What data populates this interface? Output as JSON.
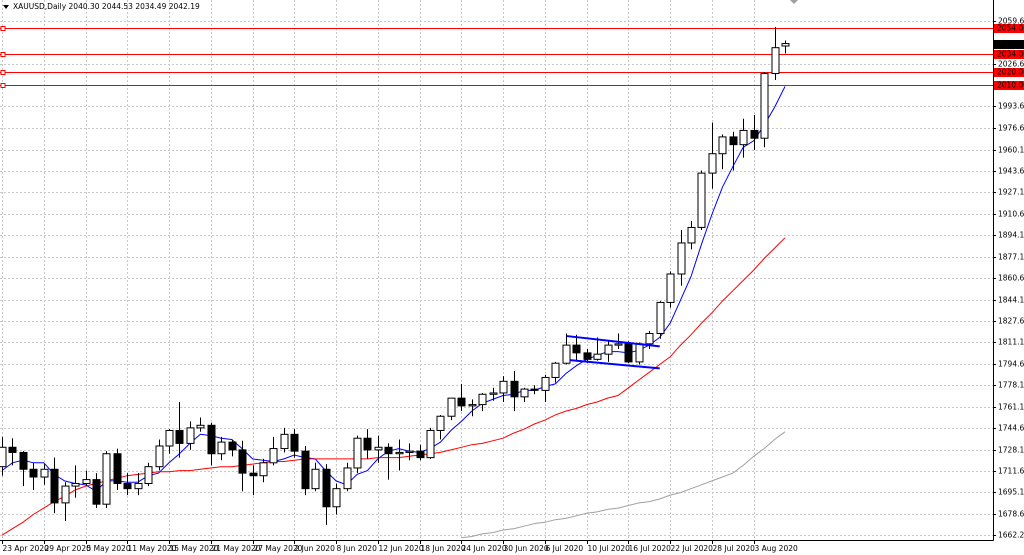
{
  "chart_data": {
    "type": "candlestick",
    "title": "XAUUSD,Daily  2040.30 2044.53 2034.49 2042.19",
    "categories": [
      "23 Apr 2020",
      null,
      null,
      null,
      "29 Apr 2020",
      null,
      null,
      null,
      "5 May 2020",
      null,
      null,
      null,
      "11 May 2020",
      null,
      null,
      null,
      "15 May 2020",
      null,
      null,
      null,
      "21 May 2020",
      null,
      null,
      null,
      "27 May 2020",
      null,
      null,
      null,
      "2 Jun 2020",
      null,
      null,
      null,
      "8 Jun 2020",
      null,
      null,
      null,
      "12 Jun 2020",
      null,
      null,
      null,
      "18 Jun 2020",
      null,
      null,
      null,
      "24 Jun 2020",
      null,
      null,
      null,
      "30 Jun 2020",
      null,
      null,
      null,
      "6 Jul 2020",
      null,
      null,
      null,
      "10 Jul 2020",
      null,
      null,
      null,
      "16 Jul 2020",
      null,
      null,
      null,
      "22 Jul 2020",
      null,
      null,
      null,
      "28 Jul 2020",
      null,
      null,
      null,
      "3 Aug 2020",
      null,
      null,
      null
    ],
    "open": [
      1715,
      1730,
      1726,
      1713,
      1707,
      1713,
      1687,
      1700,
      1702,
      1705,
      1686,
      1725,
      1702,
      1698,
      1702,
      1715,
      1731,
      1743,
      1733,
      1745,
      1747,
      1725,
      1734,
      1728,
      1710,
      1708,
      1718,
      1729,
      1740,
      1727,
      1698,
      1713,
      1684,
      1698,
      1714,
      1737,
      1728,
      1730,
      1725,
      1726,
      1727,
      1722,
      1743,
      1754,
      1768,
      1762,
      1763,
      1771,
      1772,
      1781,
      1769,
      1775,
      1774,
      1784,
      1795,
      1809,
      1803,
      1798,
      1802,
      1809,
      1810,
      1796,
      1810,
      1818,
      1842,
      1864,
      1888,
      1900,
      1942,
      1957,
      1970,
      1964,
      1975,
      1969,
      2019,
      2040.3
    ],
    "high": [
      1738,
      1737,
      1727,
      1718,
      1717,
      1722,
      1703,
      1716,
      1712,
      1710,
      1727,
      1729,
      1710,
      1710,
      1718,
      1736,
      1744,
      1765,
      1750,
      1753,
      1749,
      1738,
      1736,
      1735,
      1716,
      1721,
      1738,
      1745,
      1744,
      1731,
      1718,
      1717,
      1702,
      1718,
      1739,
      1744,
      1739,
      1733,
      1736,
      1733,
      1732,
      1745,
      1755,
      1768,
      1779,
      1767,
      1772,
      1776,
      1785,
      1789,
      1776,
      1778,
      1786,
      1796,
      1818,
      1817,
      1806,
      1815,
      1812,
      1818,
      1812,
      1811,
      1820,
      1843,
      1866,
      1898,
      1905,
      1944,
      1981,
      1972,
      1974,
      1984,
      1987,
      2020,
      2055,
      2044.53
    ],
    "low": [
      1708,
      1716,
      1700,
      1697,
      1701,
      1679,
      1673,
      1691,
      1700,
      1683,
      1683,
      1697,
      1693,
      1693,
      1700,
      1712,
      1725,
      1722,
      1728,
      1742,
      1716,
      1720,
      1723,
      1696,
      1693,
      1703,
      1716,
      1726,
      1722,
      1693,
      1696,
      1670,
      1678,
      1696,
      1710,
      1721,
      1718,
      1705,
      1712,
      1720,
      1720,
      1721,
      1736,
      1751,
      1758,
      1754,
      1758,
      1766,
      1765,
      1758,
      1765,
      1771,
      1765,
      1780,
      1794,
      1797,
      1795,
      1797,
      1796,
      1806,
      1795,
      1794,
      1806,
      1814,
      1838,
      1855,
      1883,
      1898,
      1930,
      1945,
      1944,
      1954,
      1960,
      1962,
      2014,
      2034.49
    ],
    "close": [
      1730,
      1726,
      1713,
      1707,
      1713,
      1687,
      1700,
      1702,
      1705,
      1686,
      1725,
      1702,
      1698,
      1702,
      1715,
      1731,
      1743,
      1733,
      1745,
      1747,
      1725,
      1734,
      1728,
      1710,
      1708,
      1718,
      1729,
      1740,
      1727,
      1698,
      1713,
      1684,
      1698,
      1714,
      1737,
      1728,
      1730,
      1725,
      1726,
      1727,
      1722,
      1743,
      1754,
      1768,
      1762,
      1763,
      1771,
      1772,
      1781,
      1769,
      1775,
      1774,
      1784,
      1795,
      1809,
      1803,
      1798,
      1802,
      1809,
      1810,
      1796,
      1810,
      1818,
      1842,
      1864,
      1888,
      1900,
      1942,
      1957,
      1970,
      1964,
      1975,
      1969,
      2019,
      2039,
      2042.19
    ],
    "overlays": [
      {
        "color": "#0000ff",
        "values": [
          1712,
          1718,
          1720,
          1718,
          1718,
          1709,
          1704,
          1702,
          1701,
          1696,
          1704,
          1704,
          1703,
          1703,
          1708,
          1710,
          1718,
          1725,
          1733,
          1740,
          1739,
          1737,
          1736,
          1729,
          1721,
          1720,
          1719,
          1721,
          1724,
          1722,
          1721,
          1712,
          1704,
          1701,
          1709,
          1712,
          1721,
          1727,
          1729,
          1727,
          1726,
          1729,
          1734,
          1743,
          1750,
          1758,
          1764,
          1767,
          1770,
          1771,
          1774,
          1774,
          1777,
          1779,
          1787,
          1793,
          1798,
          1801,
          1804,
          1804,
          1803,
          1805,
          1809,
          1815,
          1826,
          1844,
          1862,
          1887,
          1910,
          1931,
          1947,
          1962,
          1967,
          1979,
          1993,
          2009
        ]
      },
      {
        "color": "#ff0000",
        "values": [
          1662,
          1667,
          1672,
          1678,
          1683,
          1688,
          1692,
          1697,
          1700,
          1702,
          1704,
          1706,
          1708,
          1709,
          1710,
          1711,
          1711,
          1712,
          1712,
          1713,
          1714,
          1715,
          1715,
          1716,
          1717,
          1718,
          1719,
          1719,
          1720,
          1721,
          1721,
          1721,
          1721,
          1721,
          1721,
          1721,
          1722,
          1722,
          1722,
          1723,
          1724,
          1725,
          1726,
          1728,
          1730,
          1732,
          1733,
          1735,
          1737,
          1741,
          1744,
          1748,
          1751,
          1755,
          1758,
          1760,
          1763,
          1765,
          1768,
          1770,
          1776,
          1782,
          1788,
          1794,
          1800,
          1809,
          1817,
          1826,
          1834,
          1843,
          1851,
          1859,
          1867,
          1876,
          1884,
          1892
        ]
      },
      {
        "color": "#a0a0a0",
        "values": [
          null,
          null,
          null,
          null,
          null,
          null,
          null,
          null,
          null,
          null,
          null,
          null,
          null,
          null,
          null,
          null,
          null,
          null,
          null,
          null,
          null,
          null,
          null,
          null,
          null,
          null,
          null,
          null,
          null,
          null,
          null,
          null,
          null,
          null,
          null,
          null,
          null,
          null,
          null,
          null,
          null,
          null,
          null,
          null,
          1660,
          1661,
          1663,
          1664,
          1666,
          1667,
          1669,
          1671,
          1672,
          1674,
          1675,
          1677,
          1679,
          1680,
          1682,
          1683,
          1685,
          1687,
          1688,
          1690,
          1693,
          1695,
          1698,
          1701,
          1704,
          1707,
          1710,
          1716,
          1723,
          1729,
          1736,
          1742
        ]
      }
    ],
    "trendlines": [
      {
        "color": "#0000ff",
        "points": [
          [
            54.1,
            1816
          ],
          [
            63,
            1808
          ]
        ]
      },
      {
        "color": "#0000ff",
        "points": [
          [
            54.4,
            1797.4
          ],
          [
            63,
            1791
          ]
        ]
      }
    ],
    "levels": {
      "color": "#ff0000",
      "values": [
        {
          "value": 2054,
          "label": "2054.00"
        },
        {
          "value": 2034,
          "label": "2034.00"
        },
        {
          "value": 2020,
          "label": "2020.00"
        },
        {
          "value": 2010,
          "label": "2010.00"
        }
      ]
    },
    "current_price": 2042.19,
    "bull_color": "#ffffff",
    "bear_color": "#000000",
    "ylim": [
      1658.3,
      2072
    ],
    "yticks": [
      {
        "value": 1662.2,
        "label": "1662.20"
      },
      {
        "value": 1678.6,
        "label": "1678.60"
      },
      1695.15,
      {
        "value": 1711.6,
        "label": "1711.60"
      },
      1728.15,
      {
        "value": 1744.6,
        "label": "1744.60"
      },
      {
        "value": 1761.1,
        "label": "1761.10"
      },
      {
        "value": 1778.1,
        "label": "1778.10"
      },
      {
        "value": 1794.6,
        "label": "1794.60"
      },
      {
        "value": 1811.1,
        "label": "1811.10"
      },
      {
        "value": 1827.6,
        "label": "1827.60"
      },
      {
        "value": 1844.1,
        "label": "1844.10"
      },
      {
        "value": 1860.6,
        "label": "1860.60"
      },
      {
        "value": 1877.1,
        "label": "1877.10"
      },
      {
        "value": 1894.1,
        "label": "1894.10"
      },
      {
        "value": 1910.6,
        "label": "1910.60"
      },
      {
        "value": 1927.1,
        "label": "1927.10"
      },
      {
        "value": 1943.6,
        "label": "1943.60"
      },
      {
        "value": 1960.1,
        "label": "1960.10"
      },
      {
        "value": 1976.6,
        "label": "1976.60"
      },
      {
        "value": 1993.6,
        "label": "1993.60"
      },
      {
        "value": 2026.6,
        "label": "2026.60"
      },
      {
        "value": 2059.6,
        "label": "2059.60"
      }
    ],
    "grid": true
  }
}
